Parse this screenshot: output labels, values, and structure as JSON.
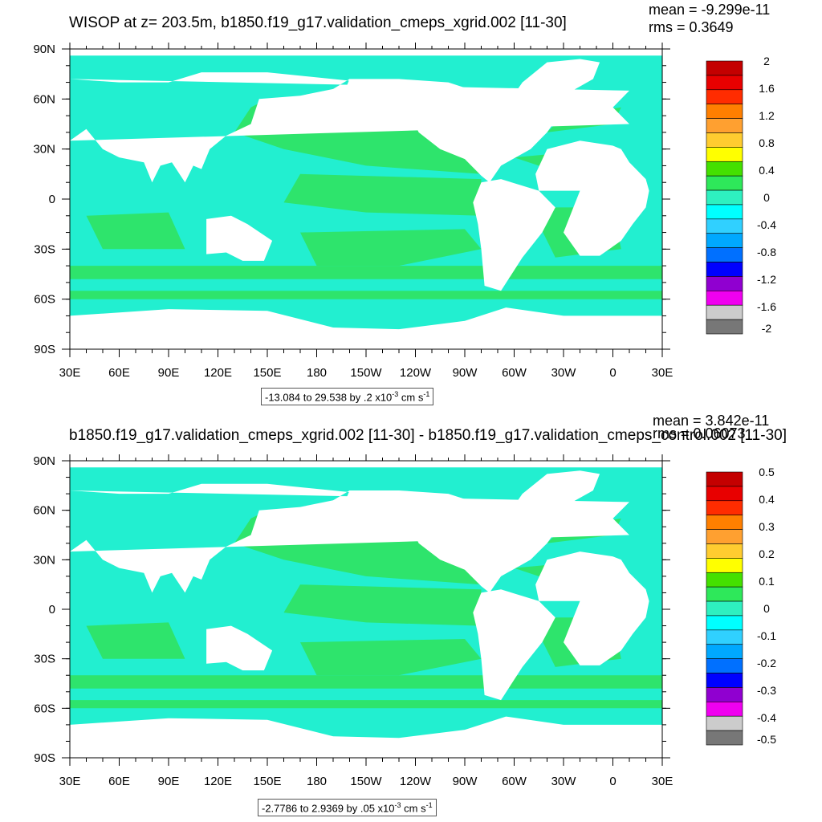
{
  "chart_data": [
    {
      "type": "heatmap",
      "title": "WISOP at z= 203.5m, b1850.f19_g17.validation_cmeps_xgrid.002 [11-30]",
      "mean_label": "mean = -9.299e-11",
      "rms_label": "rms = 0.3649",
      "x_ticks": [
        "30E",
        "60E",
        "90E",
        "120E",
        "150E",
        "180",
        "150W",
        "120W",
        "90W",
        "60W",
        "30W",
        "0",
        "30E"
      ],
      "y_ticks": [
        "90N",
        "60N",
        "30N",
        "0",
        "30S",
        "60S",
        "90S"
      ],
      "colorbar_labels": [
        "2",
        "1.6",
        "1.2",
        "0.8",
        "0.4",
        "0",
        "-0.4",
        "-0.8",
        "-1.2",
        "-1.6",
        "-2"
      ],
      "range_text": "-13.084 to 29.538 by .2 x10",
      "range_exp": "-3",
      "range_unit": " cm s",
      "range_unit_exp": "-1",
      "zlim": [
        -2,
        2
      ]
    },
    {
      "type": "heatmap",
      "title": "b1850.f19_g17.validation_cmeps_xgrid.002 [11-30] - b1850.f19_g17.validation_cmeps_control.002 [11-30]",
      "mean_label": "mean = 3.842e-11",
      "rms_label": "rms = 0.06073",
      "x_ticks": [
        "30E",
        "60E",
        "90E",
        "120E",
        "150E",
        "180",
        "150W",
        "120W",
        "90W",
        "60W",
        "30W",
        "0",
        "30E"
      ],
      "y_ticks": [
        "90N",
        "60N",
        "30N",
        "0",
        "30S",
        "60S",
        "90S"
      ],
      "colorbar_labels": [
        "0.5",
        "0.4",
        "0.3",
        "0.2",
        "0.1",
        "0",
        "-0.1",
        "-0.2",
        "-0.3",
        "-0.4",
        "-0.5"
      ],
      "range_text": "-2.7786 to 2.9369 by .05 x10",
      "range_exp": "-3",
      "range_unit": " cm s",
      "range_unit_exp": "-1",
      "zlim": [
        -0.5,
        0.5
      ]
    }
  ],
  "colors": {
    "colorbar": [
      "#C40000",
      "#E80000",
      "#FF2C00",
      "#FF7F00",
      "#FFA030",
      "#FFCC30",
      "#FFFF00",
      "#44E000",
      "#2EE85A",
      "#2EF0C0",
      "#00FFFF",
      "#30D0FF",
      "#00A8FF",
      "#0070FF",
      "#0000FF",
      "#9000D0",
      "#F000F0",
      "#CCCCCC",
      "#777777"
    ],
    "ocean_light": "#22EFD0",
    "ocean_green": "#2EE46C",
    "land": "#FFFFFF"
  }
}
